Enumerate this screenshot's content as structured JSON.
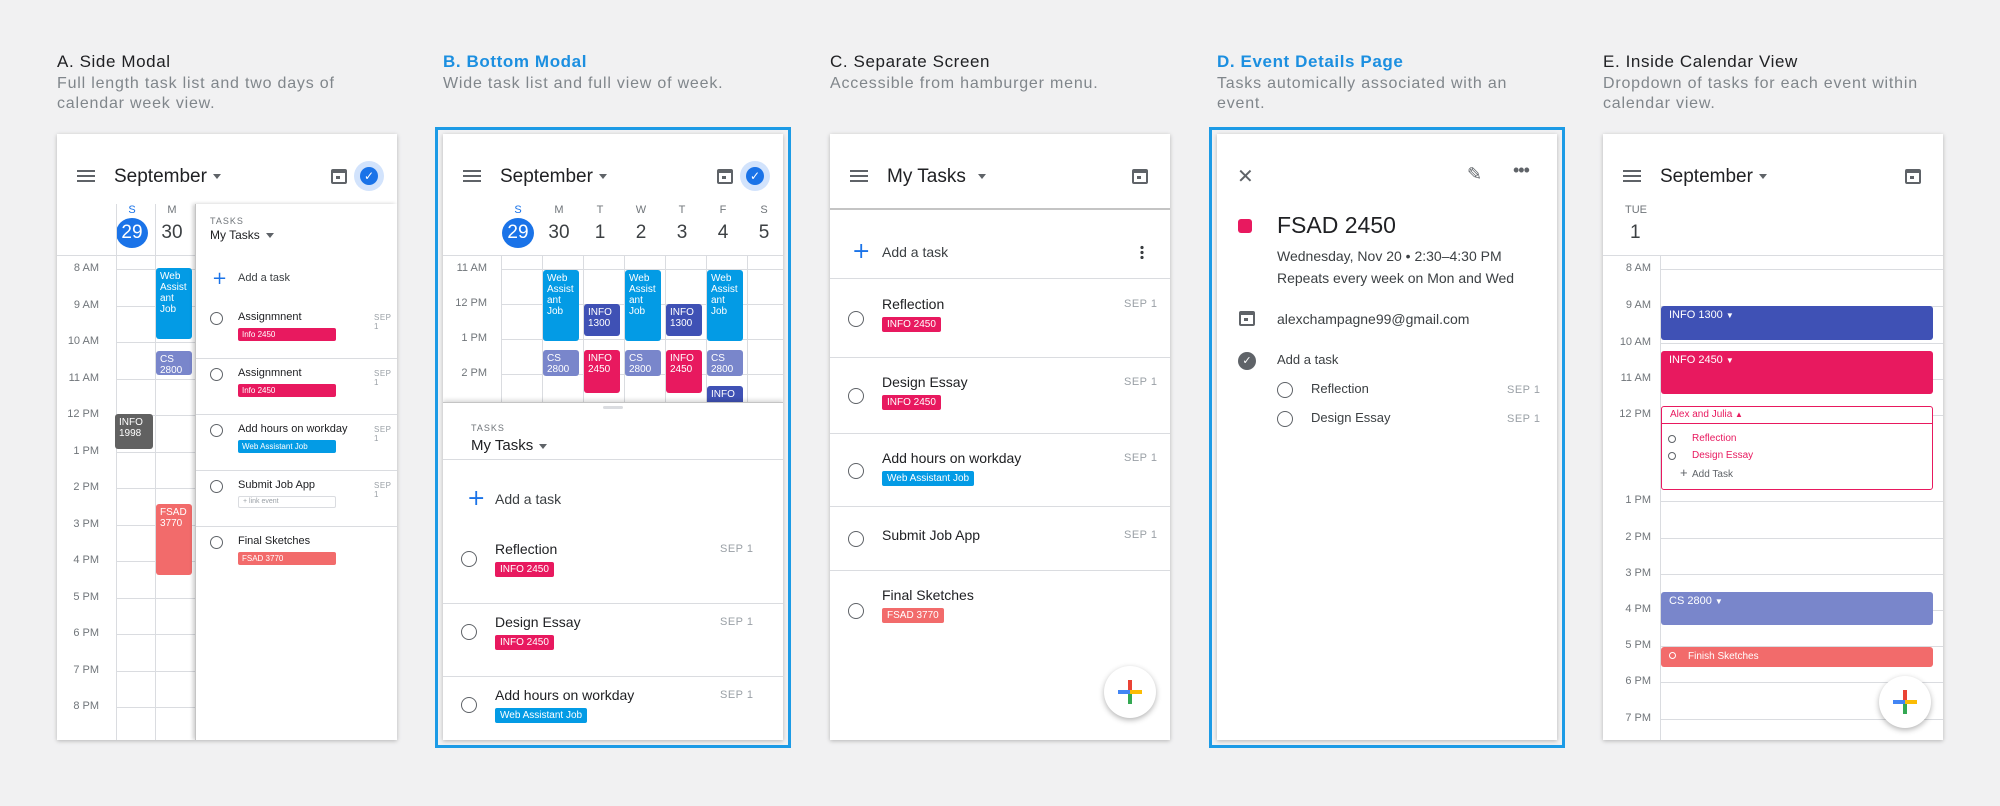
{
  "columns": [
    {
      "title": "A. Side Modal",
      "subtitle": "Full length task list and two days of calendar week view."
    },
    {
      "title": "B. Bottom Modal",
      "subtitle": "Wide task list and full view of week."
    },
    {
      "title": "C. Separate Screen",
      "subtitle": "Accessible from hamburger menu."
    },
    {
      "title": "D. Event Details Page",
      "subtitle": "Tasks automically associated with an event."
    },
    {
      "title": "E. Inside Calendar View",
      "subtitle": "Dropdown of tasks for each event within calendar view."
    }
  ],
  "colors": {
    "accent": "#1c9be6",
    "info2450": "#e8195f",
    "webjob": "#039be5",
    "cs2800": "#7986cb",
    "info1300": "#3f51b5",
    "fsad": "#f26b6b",
    "info1998": "#616161"
  },
  "common": {
    "month": "September",
    "tasks_label": "TASKS",
    "my_tasks": "My Tasks",
    "add_task": "Add a task",
    "link_event": "+ link event"
  },
  "tasks": [
    {
      "name": "Assignmnent",
      "date": "SEP 1",
      "tag": "Info 2450"
    },
    {
      "name": "Assignmnent",
      "date": "SEP 1",
      "tag": "Info 2450"
    },
    {
      "name": "Add hours on workday",
      "date": "SEP 1",
      "tag": "Web Assistant Job"
    },
    {
      "name": "Submit Job App",
      "date": "SEP 1",
      "tag": ""
    },
    {
      "name": "Final Sketches",
      "date": "",
      "tag": "FSAD 3770"
    }
  ],
  "tasks_main": [
    {
      "name": "Reflection",
      "date": "SEP 1",
      "tag": "INFO 2450"
    },
    {
      "name": "Design Essay",
      "date": "SEP 1",
      "tag": "INFO 2450"
    },
    {
      "name": "Add hours on workday",
      "date": "SEP 1",
      "tag": "Web Assistant Job"
    },
    {
      "name": "Submit Job App",
      "date": "SEP 1",
      "tag": ""
    },
    {
      "name": "Final Sketches",
      "date": "",
      "tag": "FSAD 3770"
    }
  ],
  "hours_a": [
    "8 AM",
    "9 AM",
    "10 AM",
    "11 AM",
    "12 PM",
    "1 PM",
    "2 PM",
    "3 PM",
    "4 PM",
    "5 PM",
    "6 PM",
    "7 PM",
    "8 PM"
  ],
  "hours_b": [
    "11 AM",
    "12 PM",
    "1 PM",
    "2 PM"
  ],
  "hours_e": [
    "8 AM",
    "9 AM",
    "10 AM",
    "11 AM",
    "12 PM",
    "1 PM",
    "2 PM",
    "3 PM",
    "4 PM",
    "5 PM",
    "6 PM",
    "7 PM"
  ],
  "week": [
    {
      "dn": "S",
      "dd": "29"
    },
    {
      "dn": "M",
      "dd": "30"
    },
    {
      "dn": "T",
      "dd": "1"
    },
    {
      "dn": "W",
      "dd": "2"
    },
    {
      "dn": "T",
      "dd": "3"
    },
    {
      "dn": "F",
      "dd": "4"
    },
    {
      "dn": "S",
      "dd": "5"
    }
  ],
  "events": {
    "web": "Web Assist ant Job",
    "cs": "CS 2800",
    "info1998": "INFO 1998",
    "fsad": "FSAD 3770",
    "info1300": "INFO 1300",
    "info2450": "INFO 2450",
    "info": "INFO"
  },
  "details": {
    "title": "FSAD 2450",
    "when": "Wednesday, Nov 20 • 2:30–4:30 PM",
    "repeat": "Repeats every week on Mon and Wed",
    "email": "alexchampagne99@gmail.com",
    "add_task": "Add a task",
    "tasks": [
      {
        "name": "Reflection",
        "date": "SEP 1"
      },
      {
        "name": "Design Essay",
        "date": "SEP 1"
      }
    ]
  },
  "calview": {
    "day_name": "TUE",
    "day_num": "1",
    "info1300": "INFO 1300",
    "info2450": "INFO 2450",
    "alex": "Alex and Julia",
    "sub_tasks": [
      "Reflection",
      "Design Essay"
    ],
    "add_task": "Add Task",
    "cs2800": "CS 2800",
    "finish": "Finish Sketches"
  }
}
